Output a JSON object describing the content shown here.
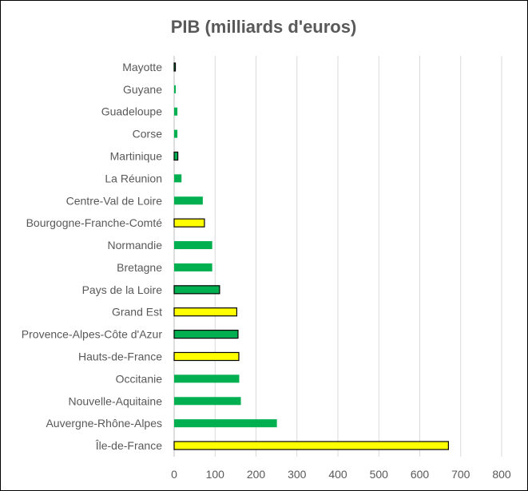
{
  "chart_data": {
    "type": "bar",
    "orientation": "horizontal",
    "title": "PIB (milliards d'euros)",
    "xlabel": "",
    "ylabel": "",
    "xlim": [
      0,
      800
    ],
    "xticks": [
      0,
      100,
      200,
      300,
      400,
      500,
      600,
      700,
      800
    ],
    "grid": "vertical",
    "legend": "none",
    "categories": [
      "Mayotte",
      "Guyane",
      "Guadeloupe",
      "Corse",
      "Martinique",
      "La Réunion",
      "Centre-Val de Loire",
      "Bourgogne-Franche-Comté",
      "Normandie",
      "Bretagne",
      "Pays de la Loire",
      "Grand Est",
      "Provence-Alpes-Côte d'Azur",
      "Hauts-de-France",
      "Occitanie",
      "Nouvelle-Aquitaine",
      "Auvergne-Rhône-Alpes",
      "Île-de-France"
    ],
    "values": [
      3,
      4,
      8,
      8,
      9,
      18,
      70,
      74,
      93,
      93,
      111,
      153,
      156,
      158,
      159,
      163,
      251,
      670
    ],
    "bar_colors": [
      "#00b050",
      "#00b050",
      "#00b050",
      "#00b050",
      "#00b050",
      "#00b050",
      "#00b050",
      "#ffff00",
      "#00b050",
      "#00b050",
      "#00b050",
      "#ffff00",
      "#00b050",
      "#ffff00",
      "#00b050",
      "#00b050",
      "#00b050",
      "#ffff00"
    ],
    "bar_outlined": [
      true,
      false,
      false,
      false,
      true,
      false,
      false,
      true,
      false,
      false,
      true,
      true,
      true,
      true,
      false,
      false,
      false,
      true
    ]
  }
}
